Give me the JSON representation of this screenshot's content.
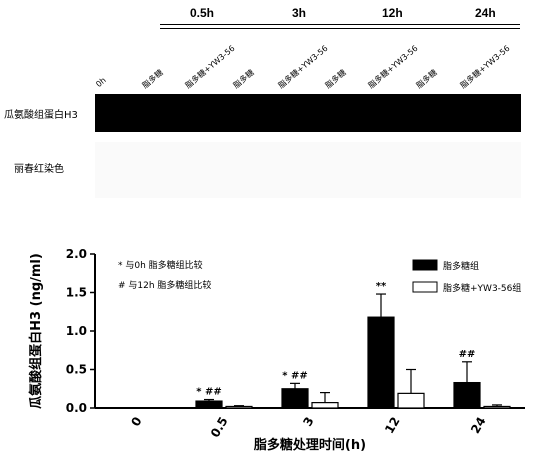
{
  "blot": {
    "time_headers": [
      "0.5h",
      "3h",
      "12h",
      "24h"
    ],
    "lanes": [
      "0h",
      "脂多糖",
      "脂多糖+YW3-56",
      "脂多糖",
      "脂多糖+YW3-56",
      "脂多糖",
      "脂多糖+YW3-56",
      "脂多糖",
      "脂多糖+YW3-56"
    ],
    "row_label_wb": "瓜氨酸组蛋白H3",
    "row_label_stain": "丽春红染色"
  },
  "chart_data": {
    "type": "bar",
    "categories": [
      "0",
      "0.5",
      "3",
      "12",
      "24"
    ],
    "series": [
      {
        "name": "脂多糖组",
        "values": [
          0.0,
          0.09,
          0.25,
          1.18,
          0.33
        ],
        "errors": [
          0.0,
          0.02,
          0.07,
          0.3,
          0.27
        ],
        "color": "#000000"
      },
      {
        "name": "脂多糖+YW3-56组",
        "values": [
          0.0,
          0.02,
          0.07,
          0.19,
          0.02
        ],
        "errors": [
          0.0,
          0.01,
          0.13,
          0.31,
          0.02
        ],
        "color": "#ffffff"
      }
    ],
    "annotations": [
      {
        "category": "0.5",
        "text": "* ##"
      },
      {
        "category": "3",
        "text": "* ##"
      },
      {
        "category": "12",
        "text": "**"
      },
      {
        "category": "24",
        "text": "##"
      }
    ],
    "ylabel": "瓜氨酸组蛋白H3 (ng/ml)",
    "xlabel": "脂多糖处理时间(h)",
    "ylim": [
      0,
      2.0
    ],
    "yticks": [
      "0.0",
      "0.5",
      "1.0",
      "1.5",
      "2.0"
    ],
    "legend": {
      "position": "top-right",
      "note_star": "* 与0h 脂多糖组比较",
      "note_hash": "# 与12h 脂多糖组比较"
    }
  }
}
